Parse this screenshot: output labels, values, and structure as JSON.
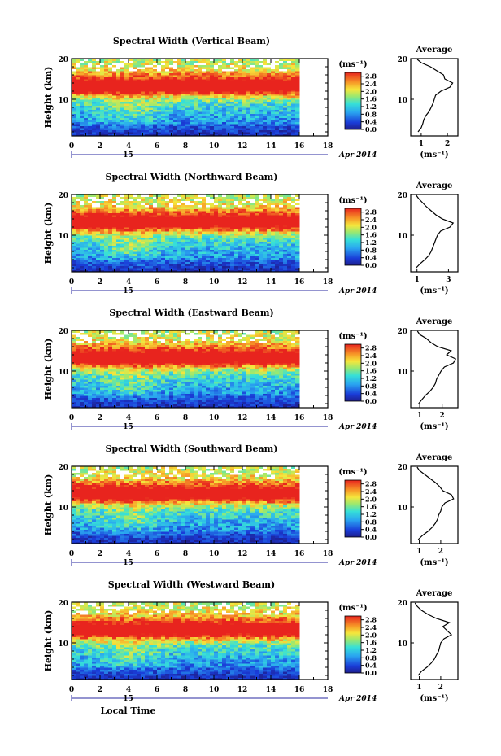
{
  "chart_data": [
    {
      "type": "heatmap",
      "title": "Spectral Width (Vertical Beam)",
      "ylabel": "Height (km)",
      "x_ticks": [
        "0",
        "2",
        "4",
        "6",
        "8",
        "10",
        "12",
        "14",
        "16",
        "18"
      ],
      "y_ticks": [
        "10",
        "20"
      ],
      "xlim": [
        0,
        18
      ],
      "ylim": [
        1,
        20
      ],
      "day_label": "15",
      "date_label": "Apr 2014",
      "colorbar": {
        "unit": "(ms⁻¹)",
        "ticks": [
          "0.0",
          "0.4",
          "0.8",
          "1.2",
          "1.6",
          "2.0",
          "2.4",
          "2.8"
        ],
        "range": [
          0,
          3.0
        ]
      },
      "profile": {
        "title": "Average",
        "x_ticks": [
          "1",
          "2"
        ],
        "xlabel": "(ms⁻¹)",
        "y_ticks": [
          "10",
          "20"
        ],
        "xlim": [
          0.6,
          2.4
        ],
        "points": [
          [
            0.88,
            2
          ],
          [
            1.0,
            3
          ],
          [
            1.06,
            4
          ],
          [
            1.1,
            5
          ],
          [
            1.18,
            6
          ],
          [
            1.3,
            7
          ],
          [
            1.38,
            8
          ],
          [
            1.45,
            9
          ],
          [
            1.5,
            10
          ],
          [
            1.55,
            11
          ],
          [
            1.75,
            12
          ],
          [
            2.1,
            13
          ],
          [
            2.2,
            14
          ],
          [
            1.9,
            15
          ],
          [
            1.85,
            16
          ],
          [
            1.6,
            17
          ],
          [
            1.35,
            18
          ],
          [
            1.0,
            19
          ],
          [
            0.85,
            19.8
          ]
        ]
      }
    },
    {
      "type": "heatmap",
      "title": "Spectral Width (Northward Beam)",
      "ylabel": "Height (km)",
      "x_ticks": [
        "0",
        "2",
        "4",
        "6",
        "8",
        "10",
        "12",
        "14",
        "16",
        "18"
      ],
      "y_ticks": [
        "10",
        "20"
      ],
      "xlim": [
        0,
        18
      ],
      "ylim": [
        1,
        20
      ],
      "day_label": "15",
      "date_label": "Apr 2014",
      "colorbar": {
        "unit": "(ms⁻¹)",
        "ticks": [
          "0.0",
          "0.4",
          "0.8",
          "1.2",
          "1.6",
          "2.0",
          "2.4",
          "2.8"
        ],
        "range": [
          0,
          3.0
        ]
      },
      "profile": {
        "title": "Average",
        "x_ticks": [
          "1",
          "3"
        ],
        "xlabel": "(ms⁻¹)",
        "y_ticks": [
          "10",
          "20"
        ],
        "xlim": [
          0.6,
          3.6
        ],
        "points": [
          [
            0.95,
            2
          ],
          [
            1.2,
            3
          ],
          [
            1.5,
            4
          ],
          [
            1.75,
            5
          ],
          [
            1.9,
            6
          ],
          [
            2.0,
            7
          ],
          [
            2.1,
            8
          ],
          [
            2.2,
            9
          ],
          [
            2.3,
            10
          ],
          [
            2.5,
            11
          ],
          [
            3.1,
            12
          ],
          [
            3.3,
            13
          ],
          [
            2.6,
            14
          ],
          [
            2.2,
            15
          ],
          [
            1.9,
            16
          ],
          [
            1.6,
            17
          ],
          [
            1.35,
            18
          ],
          [
            1.1,
            19
          ],
          [
            0.95,
            19.8
          ]
        ]
      }
    },
    {
      "type": "heatmap",
      "title": "Spectral Width (Eastward Beam)",
      "ylabel": "Height (km)",
      "x_ticks": [
        "0",
        "2",
        "4",
        "6",
        "8",
        "10",
        "12",
        "14",
        "16",
        "18"
      ],
      "y_ticks": [
        "10",
        "20"
      ],
      "xlim": [
        0,
        18
      ],
      "ylim": [
        1,
        20
      ],
      "day_label": "15",
      "date_label": "Apr 2014",
      "colorbar": {
        "unit": "(ms⁻¹)",
        "ticks": [
          "0.0",
          "0.4",
          "0.8",
          "1.2",
          "1.6",
          "2.0",
          "2.4",
          "2.8"
        ],
        "range": [
          0,
          3.0
        ]
      },
      "profile": {
        "title": "Average",
        "x_ticks": [
          "1",
          "2"
        ],
        "xlabel": "(ms⁻¹)",
        "y_ticks": [
          "10",
          "20"
        ],
        "xlim": [
          0.6,
          2.7
        ],
        "points": [
          [
            0.95,
            2
          ],
          [
            1.1,
            3
          ],
          [
            1.25,
            4
          ],
          [
            1.45,
            5
          ],
          [
            1.6,
            6
          ],
          [
            1.7,
            7
          ],
          [
            1.75,
            8
          ],
          [
            1.85,
            9
          ],
          [
            1.95,
            10
          ],
          [
            2.1,
            11
          ],
          [
            2.5,
            12
          ],
          [
            2.6,
            13
          ],
          [
            2.2,
            14
          ],
          [
            2.4,
            15
          ],
          [
            1.8,
            16
          ],
          [
            1.5,
            17
          ],
          [
            1.3,
            18
          ],
          [
            1.0,
            19
          ],
          [
            0.9,
            19.8
          ]
        ]
      }
    },
    {
      "type": "heatmap",
      "title": "Spectral Width (Southward Beam)",
      "ylabel": "Height (km)",
      "x_ticks": [
        "0",
        "2",
        "4",
        "6",
        "8",
        "10",
        "12",
        "14",
        "16",
        "18"
      ],
      "y_ticks": [
        "10",
        "20"
      ],
      "xlim": [
        0,
        18
      ],
      "ylim": [
        1,
        20
      ],
      "day_label": "15",
      "date_label": "Apr 2014",
      "colorbar": {
        "unit": "(ms⁻¹)",
        "ticks": [
          "0.0",
          "0.4",
          "0.8",
          "1.2",
          "1.6",
          "2.0",
          "2.4",
          "2.8"
        ],
        "range": [
          0,
          3.0
        ]
      },
      "profile": {
        "title": "Average",
        "x_ticks": [
          "1",
          "2"
        ],
        "xlabel": "(ms⁻¹)",
        "y_ticks": [
          "10",
          "20"
        ],
        "xlim": [
          0.6,
          2.8
        ],
        "points": [
          [
            0.95,
            2
          ],
          [
            1.15,
            3
          ],
          [
            1.4,
            4
          ],
          [
            1.6,
            5
          ],
          [
            1.75,
            6
          ],
          [
            1.85,
            7
          ],
          [
            1.9,
            8
          ],
          [
            2.0,
            9
          ],
          [
            2.05,
            10
          ],
          [
            2.2,
            11
          ],
          [
            2.6,
            12
          ],
          [
            2.5,
            13
          ],
          [
            2.1,
            14
          ],
          [
            1.95,
            15
          ],
          [
            1.75,
            16
          ],
          [
            1.5,
            17
          ],
          [
            1.25,
            18
          ],
          [
            1.0,
            19
          ],
          [
            0.9,
            19.8
          ]
        ]
      }
    },
    {
      "type": "heatmap",
      "title": "Spectral Width (Westward Beam)",
      "ylabel": "Height (km)",
      "xlabel": "Local Time",
      "x_ticks": [
        "0",
        "2",
        "4",
        "6",
        "8",
        "10",
        "12",
        "14",
        "16",
        "18"
      ],
      "y_ticks": [
        "10",
        "20"
      ],
      "xlim": [
        0,
        18
      ],
      "ylim": [
        1,
        20
      ],
      "day_label": "15",
      "date_label": "Apr 2014",
      "colorbar": {
        "unit": "(ms⁻¹)",
        "ticks": [
          "0.0",
          "0.4",
          "0.8",
          "1.2",
          "1.6",
          "2.0",
          "2.4",
          "2.8"
        ],
        "range": [
          0,
          3.0
        ]
      },
      "profile": {
        "title": "Average",
        "x_ticks": [
          "1",
          "2"
        ],
        "xlabel": "(ms⁻¹)",
        "y_ticks": [
          "10",
          "20"
        ],
        "xlim": [
          0.6,
          2.8
        ],
        "points": [
          [
            0.95,
            2
          ],
          [
            1.1,
            3
          ],
          [
            1.35,
            4
          ],
          [
            1.55,
            5
          ],
          [
            1.7,
            6
          ],
          [
            1.8,
            7
          ],
          [
            1.9,
            8
          ],
          [
            1.95,
            9
          ],
          [
            2.0,
            10
          ],
          [
            2.15,
            11
          ],
          [
            2.5,
            12
          ],
          [
            2.3,
            13
          ],
          [
            2.1,
            14
          ],
          [
            2.4,
            15
          ],
          [
            1.8,
            16
          ],
          [
            1.4,
            17
          ],
          [
            1.1,
            18
          ],
          [
            0.9,
            19
          ],
          [
            0.8,
            19.8
          ]
        ]
      }
    }
  ]
}
